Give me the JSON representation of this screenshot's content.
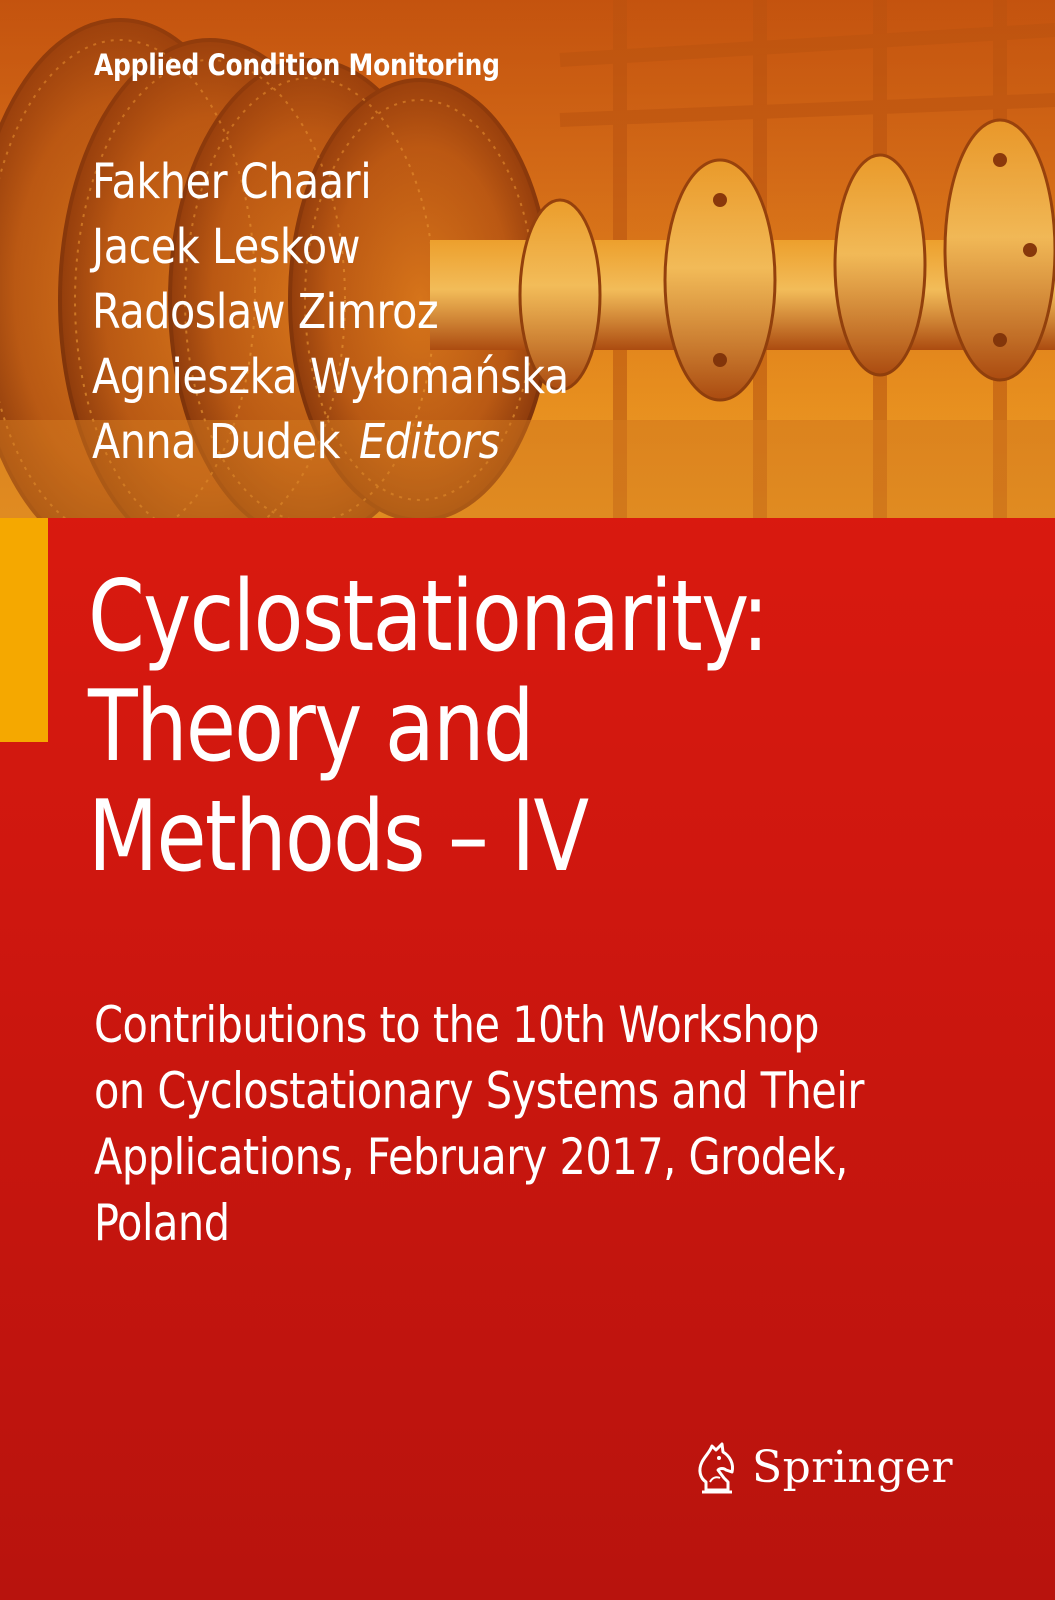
{
  "cover": {
    "series": "Applied Condition Monitoring",
    "editors": [
      "Fakher Chaari",
      "Jacek Leskow",
      "Radoslaw Zimroz",
      "Agnieszka Wyłomańska",
      "Anna Dudek"
    ],
    "editors_suffix": "Editors",
    "title_lines": [
      "Cyclostationarity:",
      "Theory and",
      "Methods – IV"
    ],
    "subtitle_lines": [
      "Contributions to the 10th Workshop",
      "on Cyclostationary Systems and Their",
      "Applications, February 2017, Grodek,",
      "Poland"
    ],
    "publisher": "Springer",
    "colors": {
      "background_red": "#d81a10",
      "photo_orange": "#e08a1e",
      "accent_yellow": "#f5a800",
      "text": "#ffffff"
    },
    "icons": {
      "publisher_logo": "chess-knight-icon",
      "cover_photo": "turbine-rotor-photo"
    }
  }
}
